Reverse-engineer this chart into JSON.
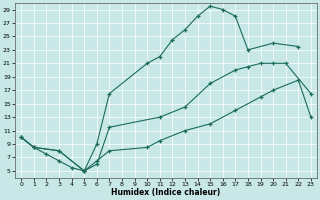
{
  "xlabel": "Humidex (Indice chaleur)",
  "bg_color": "#c8e8e8",
  "line_color": "#1a6b5a",
  "xlim": [
    -0.5,
    23.5
  ],
  "ylim": [
    4,
    30
  ],
  "xticks": [
    0,
    1,
    2,
    3,
    4,
    5,
    6,
    7,
    8,
    9,
    10,
    11,
    12,
    13,
    14,
    15,
    16,
    17,
    18,
    19,
    20,
    21,
    22,
    23
  ],
  "yticks": [
    5,
    7,
    9,
    11,
    13,
    15,
    17,
    19,
    21,
    23,
    25,
    27,
    29
  ],
  "curve1_x": [
    0,
    1,
    2,
    3,
    4,
    5,
    6,
    7,
    10,
    11,
    12,
    13,
    14,
    15,
    16,
    17,
    18,
    20,
    22
  ],
  "curve1_y": [
    10,
    8.5,
    7.5,
    6.5,
    5.5,
    5.0,
    9.0,
    16.5,
    21,
    22,
    24.5,
    26,
    28,
    29.5,
    29,
    28,
    23,
    24,
    23.5
  ],
  "curve2_x": [
    0,
    1,
    3,
    5,
    6,
    7,
    11,
    13,
    15,
    17,
    18,
    19,
    20,
    21,
    23
  ],
  "curve2_y": [
    10,
    8.5,
    8.0,
    5.0,
    6.0,
    11.5,
    13,
    14.5,
    18,
    20,
    20.5,
    21,
    21,
    21,
    16.5
  ],
  "curve3_x": [
    0,
    1,
    3,
    5,
    6,
    7,
    10,
    11,
    13,
    15,
    17,
    19,
    20,
    22,
    23
  ],
  "curve3_y": [
    10,
    8.5,
    8.0,
    5.0,
    6.5,
    8.0,
    8.5,
    9.5,
    11,
    12,
    14,
    16,
    17,
    18.5,
    13
  ]
}
